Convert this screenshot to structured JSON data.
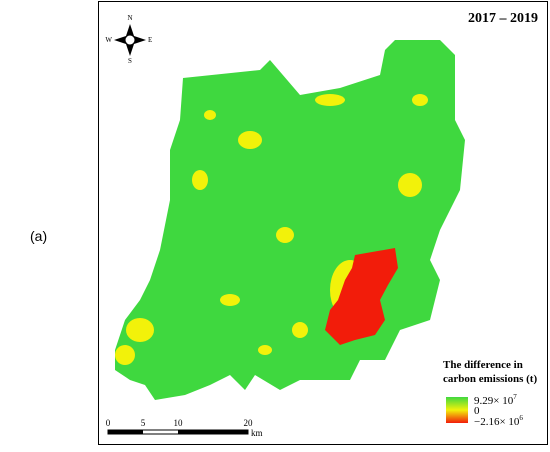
{
  "panel_label": "(a)",
  "period": "2017 – 2019",
  "compass": {
    "n": "N",
    "s": "S",
    "e": "E",
    "w": "W"
  },
  "legend": {
    "title_line1": "The difference in",
    "title_line2": "carbon emissions (t)",
    "max_base": "9.29× 10",
    "max_exp": "7",
    "mid": "0",
    "min_base": "−2.16× 10",
    "min_exp": "6"
  },
  "scale": {
    "ticks": [
      "0",
      "5",
      "10",
      "20"
    ],
    "unit": "km"
  }
}
